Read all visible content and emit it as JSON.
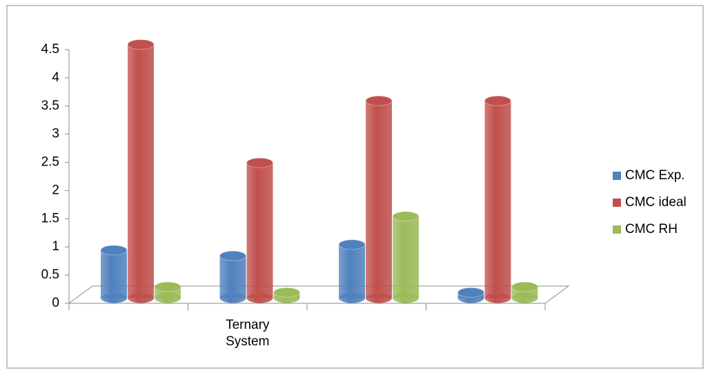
{
  "chart_data": {
    "type": "bar3d",
    "categories": [
      null,
      "Ternary System",
      null,
      null
    ],
    "series": [
      {
        "name": "CMC Exp.",
        "color": "#4f81bd",
        "values": [
          0.85,
          0.75,
          0.95,
          0.1
        ]
      },
      {
        "name": "CMC ideal",
        "color": "#c0504d",
        "values": [
          4.5,
          2.4,
          3.5,
          3.5
        ]
      },
      {
        "name": "CMC RH",
        "color": "#9bbb59",
        "values": [
          0.2,
          0.1,
          1.45,
          0.2
        ]
      }
    ],
    "ylim": [
      0,
      4.5
    ],
    "yticks": [
      0,
      0.5,
      1,
      1.5,
      2,
      2.5,
      3,
      3.5,
      4,
      4.5
    ],
    "legend": "right"
  }
}
